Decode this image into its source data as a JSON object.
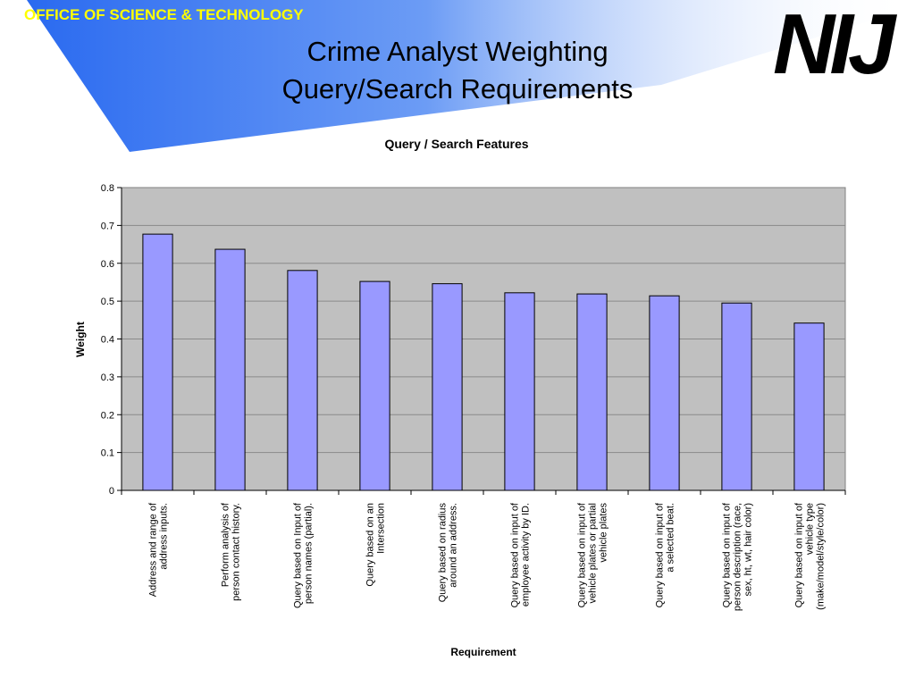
{
  "header": {
    "org": "OFFICE OF SCIENCE & TECHNOLOGY",
    "logo": "NIJ",
    "title_line1": "Crime Analyst Weighting",
    "title_line2": "Query/Search Requirements"
  },
  "colors": {
    "banner_start": "#3f7cf2",
    "banner_end": "#ffffff",
    "plot_bg": "#c0c0c0",
    "bar": "#9999ff",
    "org_text": "#ffff00"
  },
  "chart_data": {
    "type": "bar",
    "title": "Query / Search Features",
    "xlabel": "Requirement",
    "ylabel": "Weight",
    "ylim": [
      0,
      0.8
    ],
    "yticks": [
      "0",
      "0.1",
      "0.2",
      "0.3",
      "0.4",
      "0.5",
      "0.6",
      "0.7",
      "0.8"
    ],
    "grid": true,
    "categories": [
      [
        "Address and range of",
        "address inputs."
      ],
      [
        "Perform analysis of",
        "person contact history."
      ],
      [
        "Query based on Input of",
        "person names (partial)."
      ],
      [
        "Query based on an",
        "Intersection"
      ],
      [
        "Query based on radius",
        "around an address."
      ],
      [
        "Query based on input of",
        "employee activity by ID."
      ],
      [
        "Query based on input of",
        "vehicle plates or partial",
        "vehicle plates"
      ],
      [
        "Query based on input of",
        "a selected beat."
      ],
      [
        "Query based on input of",
        "person description (race,",
        "sex, ht, wt, hair color)"
      ],
      [
        "Query based on input of",
        "vehicle type",
        "(make/model/style/color)"
      ]
    ],
    "values": [
      0.677,
      0.637,
      0.581,
      0.552,
      0.546,
      0.522,
      0.519,
      0.514,
      0.495,
      0.442
    ]
  }
}
